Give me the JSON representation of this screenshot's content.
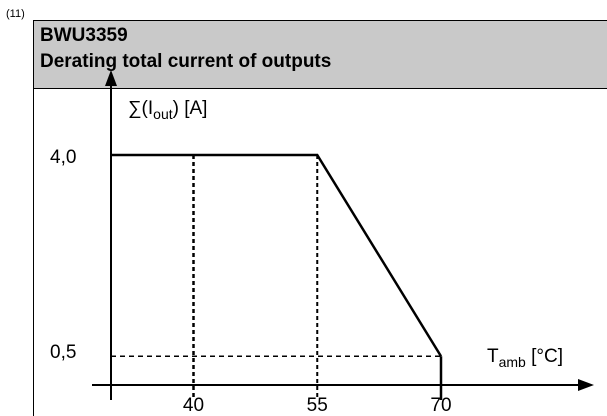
{
  "footnote": "(11)",
  "header": {
    "line1": "BWU3359",
    "line2": "Derating total current of outputs"
  },
  "chart_data": {
    "type": "line",
    "ylabel": {
      "main": "∑(I",
      "sub": "out",
      "tail": ") [A]"
    },
    "xlabel": {
      "main": "T",
      "sub": "amb",
      "tail": " [°C]"
    },
    "x": [
      30,
      55,
      70
    ],
    "y": [
      4.0,
      4.0,
      0.5
    ],
    "xlim": [
      30,
      70
    ],
    "ylim": [
      0,
      4.0
    ],
    "xticks": [
      {
        "value": 40,
        "label": "40"
      },
      {
        "value": 55,
        "label": "55"
      },
      {
        "value": 70,
        "label": "70"
      }
    ],
    "yticks": [
      {
        "value": 4.0,
        "label": "4,0"
      },
      {
        "value": 0.5,
        "label": "0,5"
      }
    ],
    "grid": false,
    "colors": {
      "line": "#000000",
      "header_bg": "#c9c9c9"
    }
  }
}
